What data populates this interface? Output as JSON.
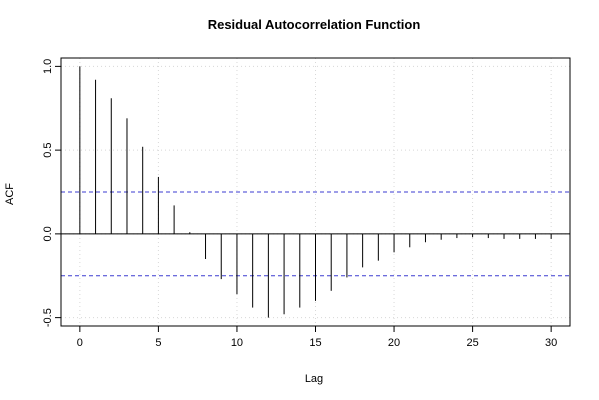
{
  "chart_data": {
    "type": "bar",
    "title": "Residual Autocorrelation Function",
    "xlabel": "Lag",
    "ylabel": "ACF",
    "x": [
      0,
      1,
      2,
      3,
      4,
      5,
      6,
      7,
      8,
      9,
      10,
      11,
      12,
      13,
      14,
      15,
      16,
      17,
      18,
      19,
      20,
      21,
      22,
      23,
      24,
      25,
      26,
      27,
      28,
      29,
      30
    ],
    "values": [
      1.0,
      0.92,
      0.81,
      0.69,
      0.52,
      0.34,
      0.17,
      0.01,
      -0.15,
      -0.27,
      -0.36,
      -0.44,
      -0.5,
      -0.48,
      -0.44,
      -0.4,
      -0.34,
      -0.26,
      -0.2,
      -0.16,
      -0.11,
      -0.08,
      -0.05,
      -0.035,
      -0.025,
      -0.02,
      -0.025,
      -0.03,
      -0.03,
      -0.03,
      -0.03
    ],
    "confidence_bound": 0.25,
    "xlim": [
      -1.2,
      31.2
    ],
    "ylim": [
      -0.55,
      1.05
    ],
    "x_ticks": [
      0,
      5,
      10,
      15,
      20,
      25,
      30
    ],
    "y_ticks": [
      -0.5,
      0.0,
      0.5,
      1.0
    ],
    "x_tick_labels": [
      "0",
      "5",
      "10",
      "15",
      "20",
      "25",
      "30"
    ],
    "y_tick_labels": [
      "-0.5",
      "0.0",
      "0.5",
      "1.0"
    ],
    "grid": true,
    "ci_color": "#3b3bd0"
  }
}
